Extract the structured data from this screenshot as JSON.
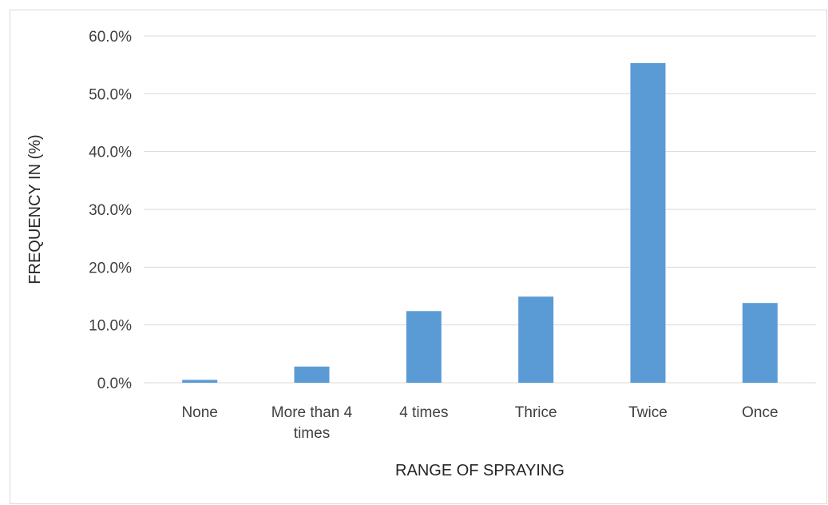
{
  "chart_data": {
    "type": "bar",
    "title": "",
    "xlabel": "RANGE OF SPRAYING",
    "ylabel": "FREQUENCY IN (%)",
    "categories": [
      "None",
      "More than 4 times",
      "4 times",
      "Thrice",
      "Twice",
      "Once"
    ],
    "category_lines": [
      [
        "None"
      ],
      [
        "More than 4",
        "times"
      ],
      [
        "4 times"
      ],
      [
        "Thrice"
      ],
      [
        "Twice"
      ],
      [
        "Once"
      ]
    ],
    "values": [
      0.5,
      2.8,
      12.4,
      14.9,
      55.3,
      13.8
    ],
    "unit": "%",
    "ylim": [
      0,
      60
    ],
    "yticks": [
      0,
      10,
      20,
      30,
      40,
      50,
      60
    ],
    "ytick_labels": [
      "0.0%",
      "10.0%",
      "20.0%",
      "30.0%",
      "40.0%",
      "50.0%",
      "60.0%"
    ],
    "grid": true,
    "legend": "none",
    "bar_color": "#5b9bd5",
    "grid_color": "#d9d9d9"
  }
}
